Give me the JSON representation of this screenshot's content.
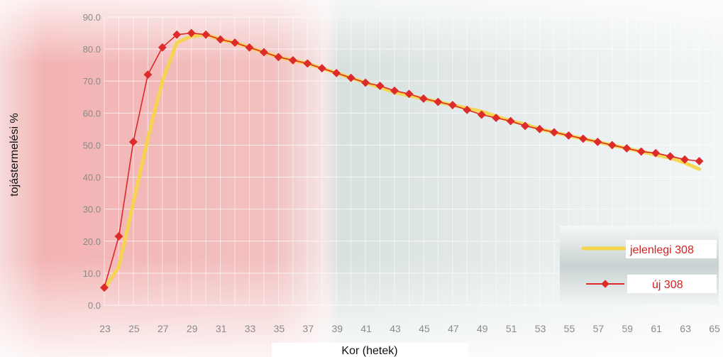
{
  "chart_data": {
    "type": "line",
    "xlabel": "Kor (hetek)",
    "ylabel": "tojástermelési %",
    "x": [
      23,
      24,
      25,
      26,
      27,
      28,
      29,
      30,
      31,
      32,
      33,
      34,
      35,
      36,
      37,
      38,
      39,
      40,
      41,
      42,
      43,
      44,
      45,
      46,
      47,
      48,
      49,
      50,
      51,
      52,
      53,
      54,
      55,
      56,
      57,
      58,
      59,
      60,
      61,
      62,
      63,
      64
    ],
    "x_tick_labels": [
      "23",
      "25",
      "27",
      "29",
      "31",
      "33",
      "35",
      "37",
      "39",
      "41",
      "43",
      "45",
      "47",
      "49",
      "51",
      "53",
      "55",
      "57",
      "59",
      "61",
      "63",
      "65"
    ],
    "y_tick_labels": [
      "0.0",
      "10.0",
      "20.0",
      "30.0",
      "40.0",
      "50.0",
      "60.0",
      "70.0",
      "80.0",
      "90.0"
    ],
    "xlim": [
      23,
      65
    ],
    "ylim": [
      0,
      90
    ],
    "grid": true,
    "legend_position": "bottom-right",
    "series": [
      {
        "name": "jelenlegi 308",
        "color": "#f5d44a",
        "marker": "none",
        "values": [
          5,
          12,
          32,
          52,
          70,
          82,
          84,
          84.5,
          83,
          82,
          80.5,
          79,
          77.5,
          76.5,
          75.5,
          74,
          72.5,
          71,
          69.5,
          68,
          66.5,
          65.5,
          64.5,
          63.5,
          62.5,
          61.5,
          60.5,
          59,
          57.5,
          56.5,
          55,
          54,
          53,
          52,
          51,
          50,
          49,
          48,
          47,
          46,
          44.5,
          42.5
        ]
      },
      {
        "name": "új 308",
        "color": "#dd2a2a",
        "marker": "diamond",
        "values": [
          5.5,
          21.5,
          51,
          72,
          80.5,
          84.5,
          85,
          84.5,
          83,
          82,
          80.5,
          79,
          77.5,
          76.5,
          75.5,
          74,
          72.5,
          71,
          69.5,
          68.5,
          67,
          66,
          64.5,
          63.5,
          62.5,
          61,
          59.5,
          58.5,
          57.5,
          56,
          55,
          54,
          53,
          52,
          51,
          50,
          49,
          48,
          47.5,
          46.5,
          45.5,
          45
        ]
      }
    ]
  }
}
